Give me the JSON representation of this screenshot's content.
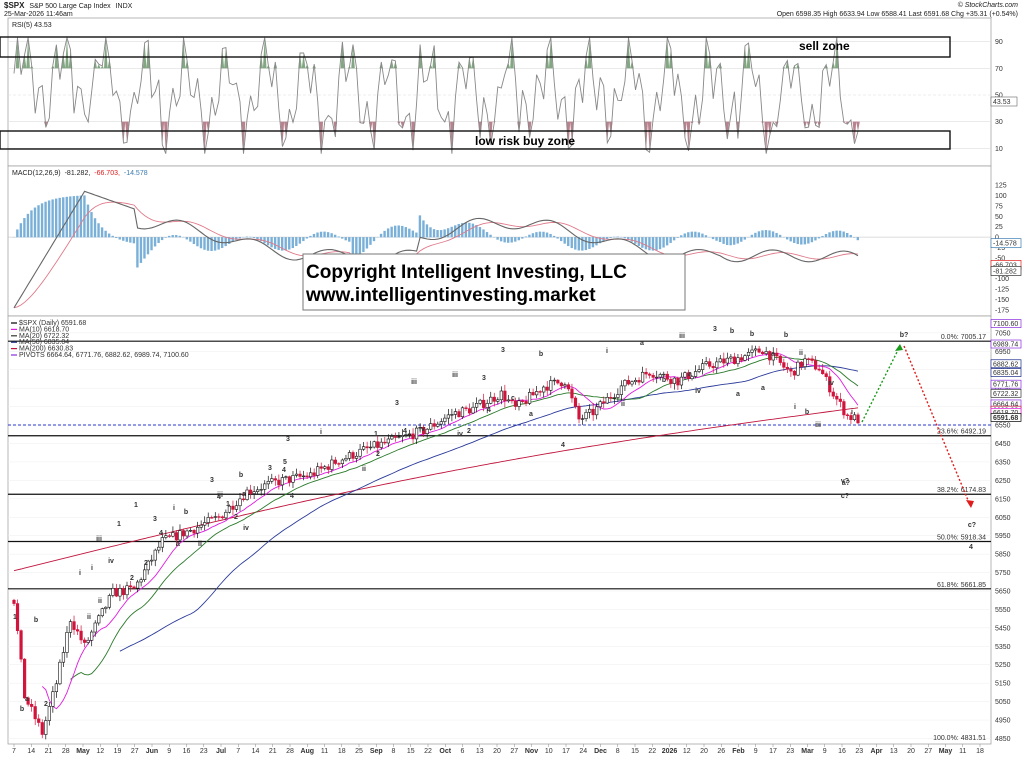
{
  "header": {
    "symbol": "$SPX",
    "name": "S&P 500 Large Cap Index",
    "exchange": "INDX",
    "date": "25-Mar-2026 11:46am",
    "watermark": "© StockCharts.com",
    "quote": "Open 6598.35  High 6633.94  Low 6588.41  Last 6591.68  Chg +35.31 (+0.54%)"
  },
  "copyright": {
    "line1": "Copyright Intelligent Investing, LLC",
    "line2": "www.intelligentinvesting.market"
  },
  "rsi_panel": {
    "label": "RSI(5) 43.53",
    "ticks": [
      "90",
      "70",
      "50",
      "30",
      "10"
    ],
    "current": "43.53",
    "sell_zone": "sell zone",
    "buy_zone": "low risk buy zone"
  },
  "macd_panel": {
    "label": "MACD(12,26,9) -81.282, -66.703, -14.578",
    "label_parts": [
      "MACD(12,26,9)",
      "-81.282,",
      "-66.703,",
      "-14.578"
    ],
    "ticks": [
      "125",
      "100",
      "75",
      "50",
      "25",
      "0",
      "-25",
      "-50",
      "-75",
      "-100",
      "-125",
      "-150",
      "-175"
    ],
    "values": [
      "-14.578",
      "-66.703",
      "-81.282"
    ]
  },
  "price_panel": {
    "legend": [
      {
        "text": "$SPX (Daily) 6591.68",
        "color": "#000000"
      },
      {
        "text": "MA(10) 6618.70",
        "color": "#e01ce0"
      },
      {
        "text": "MA(20) 6722.32",
        "color": "#333333"
      },
      {
        "text": "MA(50) 6835.04",
        "color": "#1a2a8a"
      },
      {
        "text": "MA(200) 6630.83",
        "color": "#c0143c"
      },
      {
        "text": "PIVOTS 6664.64, 6771.76, 6882.62, 6989.74, 7100.60",
        "color": "#8a2be2"
      }
    ],
    "ticks": [
      "7050",
      "6950",
      "6850",
      "6750",
      "6650",
      "6550",
      "6450",
      "6350",
      "6250",
      "6150",
      "6050",
      "5950",
      "5850",
      "5750",
      "5650",
      "5550",
      "5450",
      "5350",
      "5250",
      "5150",
      "5050",
      "4950",
      "4850"
    ],
    "right_boxes": [
      {
        "text": "7100.60",
        "color": "#8a2be2"
      },
      {
        "text": "6989.74",
        "color": "#8a2be2"
      },
      {
        "text": "6882.62",
        "color": "#1a2a8a"
      },
      {
        "text": "6835.04",
        "color": "#1a2a8a"
      },
      {
        "text": "6771.76",
        "color": "#8a2be2"
      },
      {
        "text": "6722.32",
        "color": "#333333"
      },
      {
        "text": "6664.64",
        "color": "#8a2be2"
      },
      {
        "text": "6630.83",
        "color": "#c0143c"
      },
      {
        "text": "6618.70",
        "color": "#e01ce0"
      },
      {
        "text": "6591.68",
        "color": "#000000"
      }
    ],
    "fib_levels": [
      {
        "label": "0.0%: 7005.17"
      },
      {
        "label": "23.6%: 6492.19"
      },
      {
        "label": "38.2%: 6174.83"
      },
      {
        "label": "50.0%: 5918.34"
      },
      {
        "label": "61.8%: 5661.85"
      },
      {
        "label": "100.0%: 4831.51"
      }
    ]
  },
  "x_axis": {
    "labels": [
      "7",
      "14",
      "21",
      "28",
      "May",
      "12",
      "19",
      "27",
      "Jun",
      "9",
      "16",
      "23",
      "Jul",
      "7",
      "14",
      "21",
      "28",
      "Aug",
      "11",
      "18",
      "25",
      "Sep",
      "8",
      "15",
      "22",
      "Oct",
      "6",
      "13",
      "20",
      "27",
      "Nov",
      "10",
      "17",
      "24",
      "Dec",
      "8",
      "15",
      "22",
      "2026",
      "12",
      "20",
      "26",
      "Feb",
      "9",
      "17",
      "23",
      "Mar",
      "9",
      "16",
      "23",
      "Apr",
      "13",
      "20",
      "27",
      "May",
      "11",
      "18"
    ]
  },
  "waves": [
    {
      "t": "1",
      "color": "#1a8a1a"
    },
    {
      "t": "b",
      "color": "#e01c1c"
    },
    {
      "t": "a",
      "color": "#555555"
    },
    {
      "t": "b",
      "color": "#555555"
    },
    {
      "t": "2",
      "color": "#1a8a1a"
    },
    {
      "t": "i",
      "color": "#555555"
    },
    {
      "t": "i",
      "color": "#1a1ab0"
    },
    {
      "t": "ii",
      "color": "#555555"
    },
    {
      "t": "ii",
      "color": "#1a1ab0"
    },
    {
      "t": "iii",
      "color": "#1a1ab0"
    },
    {
      "t": "iv",
      "color": "#1a1ab0"
    },
    {
      "t": "1",
      "color": "#e08a1a"
    },
    {
      "t": "2",
      "color": "#e08a1a"
    },
    {
      "t": "1",
      "color": "#e01ce0"
    },
    {
      "t": "2",
      "color": "#e01ce0"
    },
    {
      "t": "3",
      "color": "#e01ce0"
    },
    {
      "t": "4",
      "color": "#e01ce0"
    },
    {
      "t": "i",
      "color": "#1a1ab0"
    },
    {
      "t": "ii",
      "color": "#1a1ab0"
    },
    {
      "t": "a",
      "color": "#e01ce0"
    },
    {
      "t": "b",
      "color": "#e01ce0"
    },
    {
      "t": "iii",
      "color": "#1a1ab0"
    },
    {
      "t": "iv",
      "color": "#1a1ab0"
    },
    {
      "t": "3",
      "color": "#e01ce0"
    },
    {
      "t": "4",
      "color": "#e01ce0"
    },
    {
      "t": "1",
      "color": "#e01ce0"
    },
    {
      "t": "2",
      "color": "#e01ce0"
    },
    {
      "t": "b",
      "color": "#e01ce0"
    },
    {
      "t": "a",
      "color": "#e01ce0"
    },
    {
      "t": "3",
      "color": "#e01ce0"
    },
    {
      "t": "4",
      "color": "#e01ce0"
    },
    {
      "t": "5",
      "color": "#e01ce0"
    },
    {
      "t": "4",
      "color": "#e08a1a"
    },
    {
      "t": "3",
      "color": "#e08a1a"
    },
    {
      "t": "i",
      "color": "#1a1ab0"
    },
    {
      "t": "ii",
      "color": "#1a1ab0"
    },
    {
      "t": "1",
      "color": "#e01ce0"
    },
    {
      "t": "2",
      "color": "#e01ce0"
    },
    {
      "t": "3",
      "color": "#e01ce0"
    },
    {
      "t": "4",
      "color": "#e01ce0"
    },
    {
      "t": "iv",
      "color": "#1a1ab0"
    },
    {
      "t": "iii",
      "color": "#1a1ab0"
    },
    {
      "t": "iii",
      "color": "#555555"
    },
    {
      "t": "iv",
      "color": "#555555"
    },
    {
      "t": "2",
      "color": "#e08a1a"
    },
    {
      "t": "3",
      "color": "#e08a1a"
    },
    {
      "t": "4",
      "color": "#e08a1a"
    },
    {
      "t": "3",
      "color": "#1a8a1a"
    },
    {
      "t": "b",
      "color": "#555555"
    },
    {
      "t": "a",
      "color": "#555555"
    },
    {
      "t": "c",
      "color": "#555555"
    },
    {
      "t": "4",
      "color": "#1a8a1a"
    },
    {
      "t": "i",
      "color": "#555555"
    },
    {
      "t": "ii",
      "color": "#555555"
    },
    {
      "t": "a",
      "color": "#e08a1a"
    },
    {
      "t": "b",
      "color": "#e08a1a"
    },
    {
      "t": "iii",
      "color": "#555555"
    },
    {
      "t": "iv",
      "color": "#555555"
    },
    {
      "t": "3",
      "color": "#111111"
    },
    {
      "t": "a",
      "color": "#e08a1a"
    },
    {
      "t": "b",
      "color": "#e08a1a"
    },
    {
      "t": "b",
      "color": "#555555"
    },
    {
      "t": "a",
      "color": "#555555"
    },
    {
      "t": "b",
      "color": "#1a8a1a"
    },
    {
      "t": "a",
      "color": "#1a8a1a"
    },
    {
      "t": "a",
      "color": "#555555"
    },
    {
      "t": "ii",
      "color": "#555555"
    },
    {
      "t": "i",
      "color": "#555555"
    },
    {
      "t": "b",
      "color": "#555555"
    },
    {
      "t": "iv",
      "color": "#555555"
    },
    {
      "t": "iii",
      "color": "#555555"
    },
    {
      "t": "v?",
      "color": "#555555"
    },
    {
      "t": "c?",
      "color": "#1a8a1a"
    },
    {
      "t": "a?",
      "color": "#e01c1c"
    },
    {
      "t": "b?",
      "color": "#e01c1c"
    },
    {
      "t": "c?",
      "color": "#e01c1c"
    },
    {
      "t": "4",
      "color": "#111111"
    },
    {
      "t": "i",
      "color": "#e08a1a"
    }
  ],
  "colors": {
    "up": "#ffffff",
    "down": "#d0143c",
    "ma10": "#e01ce0",
    "ma20": "#2a7a2a",
    "ma50": "#2a3a9a",
    "ma200": "#c0143c",
    "rsi": "#888888",
    "macd": "#555555",
    "signal": "#e07a8a",
    "hist": "#7ab0d8",
    "projection_up": "#1a9a1a",
    "projection_down": "#e01c1c"
  }
}
